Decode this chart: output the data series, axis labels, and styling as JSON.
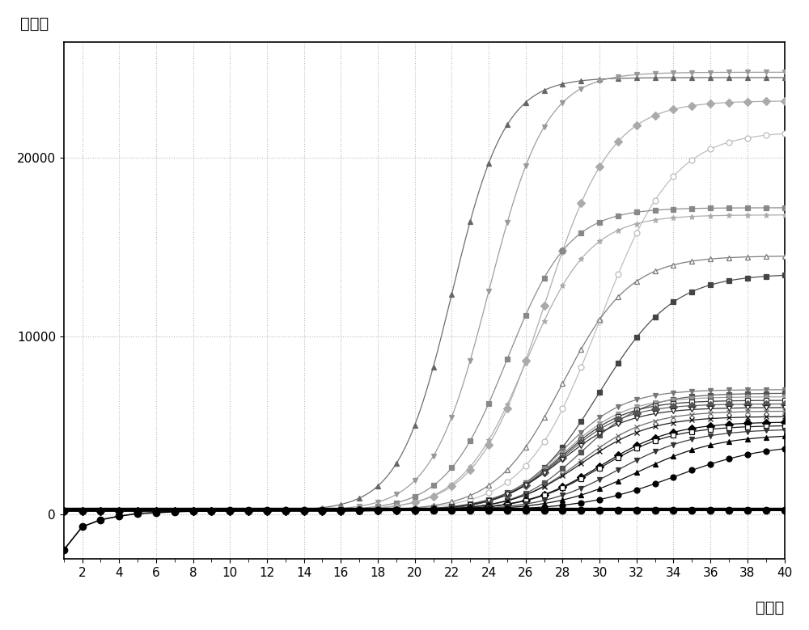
{
  "title_y": "荧光值",
  "title_x": "循环数",
  "xlim": [
    1,
    40
  ],
  "ylim": [
    -2500,
    26500
  ],
  "xticks": [
    2,
    4,
    6,
    8,
    10,
    12,
    14,
    16,
    18,
    20,
    22,
    24,
    26,
    28,
    30,
    32,
    34,
    36,
    38,
    40
  ],
  "yticks": [
    0,
    10000,
    20000
  ],
  "threshold": 300,
  "background": "#ffffff",
  "grid_color": "#bbbbbb",
  "series": [
    {
      "color": "#666666",
      "marker": "^",
      "fillstyle": "full",
      "Ct": 22,
      "plateau": 24500,
      "steepness": 0.7
    },
    {
      "color": "#999999",
      "marker": "v",
      "fillstyle": "full",
      "Ct": 24,
      "plateau": 24800,
      "steepness": 0.65
    },
    {
      "color": "#aaaaaa",
      "marker": "D",
      "fillstyle": "full",
      "Ct": 27,
      "plateau": 23200,
      "steepness": 0.55
    },
    {
      "color": "#bbbbbb",
      "marker": "o",
      "fillstyle": "none",
      "Ct": 30,
      "plateau": 21500,
      "steepness": 0.5
    },
    {
      "color": "#888888",
      "marker": "s",
      "fillstyle": "full",
      "Ct": 25,
      "plateau": 17200,
      "steepness": 0.6
    },
    {
      "color": "#aaaaaa",
      "marker": "*",
      "fillstyle": "full",
      "Ct": 26,
      "plateau": 16800,
      "steepness": 0.58
    },
    {
      "color": "#777777",
      "marker": "^",
      "fillstyle": "none",
      "Ct": 28,
      "plateau": 14500,
      "steepness": 0.55
    },
    {
      "color": "#444444",
      "marker": "s",
      "fillstyle": "full",
      "Ct": 30,
      "plateau": 13500,
      "steepness": 0.5
    },
    {
      "color": "#777777",
      "marker": "v",
      "fillstyle": "full",
      "Ct": 28,
      "plateau": 7000,
      "steepness": 0.6
    },
    {
      "color": "#555555",
      "marker": "s",
      "fillstyle": "full",
      "Ct": 29,
      "plateau": 6800,
      "steepness": 0.58
    },
    {
      "color": "#999999",
      "marker": "v",
      "fillstyle": "full",
      "Ct": 28,
      "plateau": 6600,
      "steepness": 0.58
    },
    {
      "color": "#333333",
      "marker": "s",
      "fillstyle": "none",
      "Ct": 28,
      "plateau": 6400,
      "steepness": 0.58
    },
    {
      "color": "#555555",
      "marker": "D",
      "fillstyle": "full",
      "Ct": 28,
      "plateau": 6200,
      "steepness": 0.58
    },
    {
      "color": "#222222",
      "marker": "v",
      "fillstyle": "none",
      "Ct": 28,
      "plateau": 6000,
      "steepness": 0.55
    },
    {
      "color": "#666666",
      "marker": "x",
      "fillstyle": "full",
      "Ct": 29,
      "plateau": 5800,
      "steepness": 0.55
    },
    {
      "color": "#111111",
      "marker": "x",
      "fillstyle": "full",
      "Ct": 29,
      "plateau": 5500,
      "steepness": 0.53
    },
    {
      "color": "#000000",
      "marker": "D",
      "fillstyle": "full",
      "Ct": 30,
      "plateau": 5200,
      "steepness": 0.5
    },
    {
      "color": "#111111",
      "marker": "s",
      "fillstyle": "none",
      "Ct": 30,
      "plateau": 5000,
      "steepness": 0.5
    },
    {
      "color": "#333333",
      "marker": "v",
      "fillstyle": "full",
      "Ct": 31,
      "plateau": 4800,
      "steepness": 0.48
    },
    {
      "color": "#000000",
      "marker": "^",
      "fillstyle": "full",
      "Ct": 32,
      "plateau": 4500,
      "steepness": 0.45
    },
    {
      "color": "#000000",
      "marker": "o",
      "fillstyle": "full",
      "Ct": 34,
      "plateau": 4000,
      "steepness": 0.4
    }
  ],
  "special_series": {
    "color": "#000000",
    "marker": "o",
    "y_values": [
      -2000,
      -700,
      -300,
      -100,
      50,
      100,
      150,
      180,
      200,
      210,
      220,
      220,
      220,
      220,
      220,
      220,
      220,
      220,
      220,
      220,
      220,
      220,
      220,
      220,
      220,
      220,
      220,
      220,
      220,
      220,
      220,
      220,
      220,
      220,
      220,
      220,
      220,
      220,
      220,
      220
    ]
  }
}
